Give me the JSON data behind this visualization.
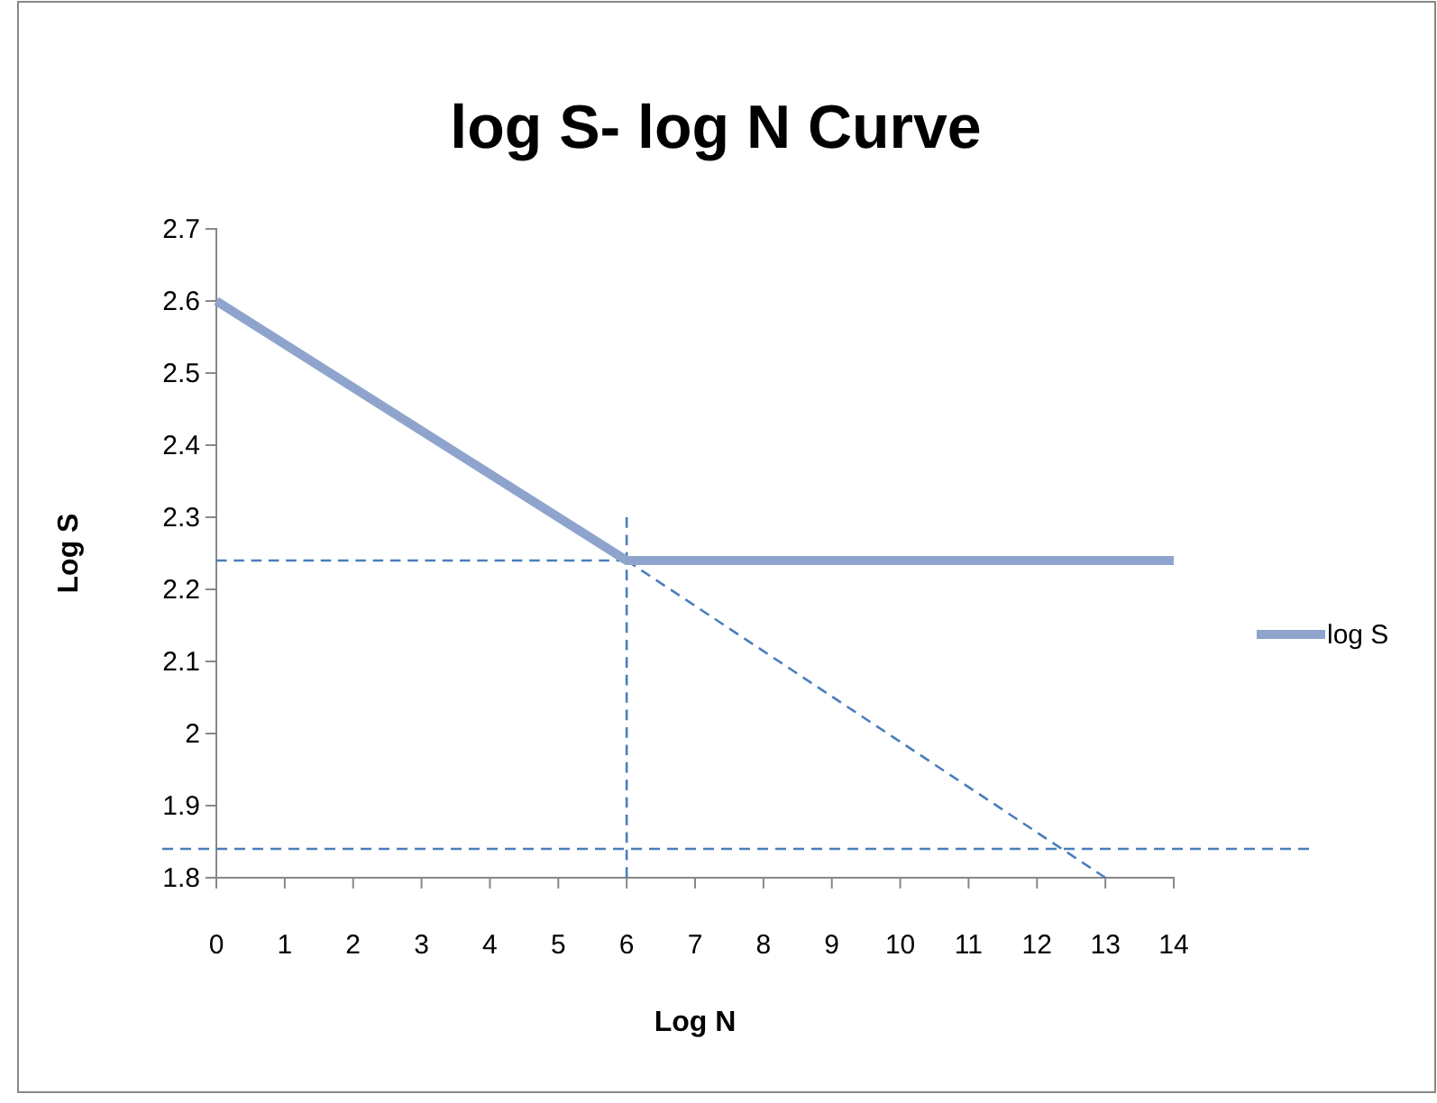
{
  "chart_data": {
    "type": "line",
    "title": "log S- log N Curve",
    "xlabel": "Log N",
    "ylabel": "Log S",
    "xlim": [
      0,
      14
    ],
    "xticks": [
      0,
      1,
      2,
      3,
      4,
      5,
      6,
      7,
      8,
      9,
      10,
      11,
      12,
      13,
      14
    ],
    "ylim": [
      1.8,
      2.7
    ],
    "yticks": [
      1.8,
      1.9,
      2,
      2.1,
      2.2,
      2.3,
      2.4,
      2.5,
      2.6,
      2.7
    ],
    "series": [
      {
        "name": "log S",
        "color": "#8ea4cc",
        "x": [
          0,
          2,
          6,
          14
        ],
        "values": [
          2.6,
          2.48,
          2.24,
          2.24
        ]
      },
      {
        "color": "#4a7ebb",
        "line_style": "dashed",
        "x": [
          0,
          6
        ],
        "values": [
          2.24,
          2.24
        ]
      },
      {
        "color": "#4a7ebb",
        "line_style": "dashed",
        "x": [
          6,
          6
        ],
        "values": [
          1.8,
          2.3
        ]
      },
      {
        "color": "#4a7ebb",
        "line_style": "dashed",
        "x": [
          6,
          13
        ],
        "values": [
          2.24,
          1.8
        ]
      }
    ],
    "ref_lines": [
      {
        "axis": "y",
        "value": 1.84,
        "color": "#4a7ebb",
        "line_style": "dashed"
      }
    ],
    "legend": "right",
    "grid": false
  }
}
